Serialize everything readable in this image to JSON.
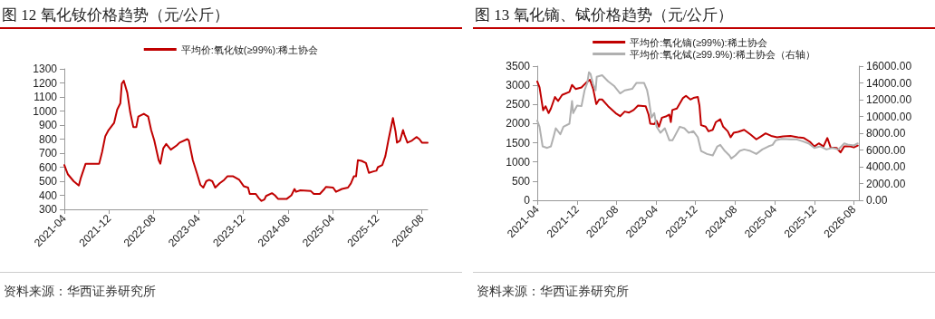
{
  "chart_data": [
    {
      "type": "line",
      "title": "图 12 氧化钕价格趋势（元/公斤）",
      "annotations": [
        "资料来源：华西证券研究所"
      ],
      "legend": "top",
      "grid": false,
      "marker": "none",
      "line_style": "solid",
      "xlim": [
        "2021-04",
        "2026-09"
      ],
      "xticks": [
        "2021-04",
        "2021-12",
        "2022-08",
        "2023-04",
        "2023-12",
        "2024-08",
        "2025-04",
        "2025-12",
        "2026-08"
      ],
      "ylim": [
        300,
        1300
      ],
      "yticks": [
        300,
        400,
        500,
        600,
        700,
        800,
        900,
        1000,
        1100,
        1200,
        1300
      ],
      "series": [
        {
          "name": "平均价:氧化钕(≥99%):稀土协会",
          "color": "#c00000",
          "x": [
            "2021-04-01",
            "2021-04-20",
            "2021-05-22",
            "2021-06-19",
            "2021-06-29",
            "2021-07-26",
            "2021-10-08",
            "2021-10-24",
            "2021-11-10",
            "2021-11-26",
            "2021-12-28",
            "2022-01-14",
            "2022-01-31",
            "2022-02-08",
            "2022-02-19",
            "2022-03-10",
            "2022-03-26",
            "2022-04-12",
            "2022-04-28",
            "2022-05-09",
            "2022-06-08",
            "2022-07-02",
            "2022-07-18",
            "2022-08-04",
            "2022-08-28",
            "2022-09-06",
            "2022-09-22",
            "2022-10-08",
            "2022-11-02",
            "2022-12-04",
            "2022-12-20",
            "2023-01-31",
            "2023-02-08",
            "2023-03-02",
            "2023-03-26",
            "2023-04-12",
            "2023-04-28",
            "2023-05-14",
            "2023-05-30",
            "2023-06-16",
            "2023-07-02",
            "2023-07-26",
            "2023-08-20",
            "2023-09-06",
            "2023-10-08",
            "2023-11-10",
            "2023-12-04",
            "2023-12-28",
            "2024-01-06",
            "2024-02-08",
            "2024-02-24",
            "2024-03-10",
            "2024-03-26",
            "2024-04-04",
            "2024-05-06",
            "2024-05-22",
            "2024-06-08",
            "2024-07-26",
            "2024-08-20",
            "2024-09-06",
            "2024-09-14",
            "2024-10-08",
            "2024-12-04",
            "2024-12-20",
            "2025-01-22",
            "2025-02-16",
            "2025-02-24",
            "2025-04-04",
            "2025-04-20",
            "2025-05-22",
            "2025-06-24",
            "2025-07-10",
            "2025-07-26",
            "2025-08-07",
            "2025-08-17",
            "2025-09-06",
            "2025-09-30",
            "2025-10-16",
            "2025-11-10",
            "2025-11-26",
            "2025-12-04",
            "2025-12-28",
            "2026-01-14",
            "2026-01-30",
            "2026-02-24",
            "2026-03-10",
            "2026-03-18",
            "2026-04-04",
            "2026-04-20",
            "2026-04-28",
            "2026-05-14",
            "2026-06-08",
            "2026-07-02",
            "2026-07-18",
            "2026-08-01",
            "2026-09-01"
          ],
          "values": [
            615,
            550,
            500,
            470,
            520,
            625,
            625,
            710,
            820,
            860,
            915,
            1010,
            1055,
            1195,
            1215,
            1130,
            990,
            885,
            885,
            960,
            980,
            960,
            865,
            790,
            650,
            625,
            735,
            765,
            725,
            755,
            775,
            800,
            790,
            650,
            550,
            475,
            455,
            500,
            510,
            500,
            455,
            485,
            510,
            535,
            535,
            510,
            465,
            455,
            410,
            410,
            380,
            360,
            370,
            395,
            415,
            400,
            375,
            375,
            400,
            445,
            425,
            435,
            430,
            410,
            410,
            445,
            460,
            455,
            425,
            445,
            455,
            485,
            535,
            535,
            650,
            645,
            630,
            560,
            570,
            575,
            600,
            615,
            680,
            790,
            950,
            855,
            775,
            790,
            865,
            830,
            775,
            790,
            815,
            800,
            775,
            775
          ]
        }
      ]
    },
    {
      "type": "line",
      "title": "图 13 氧化镝、铽价格趋势（元/公斤）",
      "annotations": [
        "资料来源：华西证券研究所"
      ],
      "legend": "top",
      "grid": false,
      "marker": "none",
      "line_style": "solid",
      "xlim": [
        "2021-04",
        "2026-09"
      ],
      "xticks": [
        "2021-04",
        "2021-12",
        "2022-08",
        "2023-04",
        "2023-12",
        "2024-08",
        "2025-04",
        "2025-12",
        "2026-08"
      ],
      "ylim": [
        0,
        3500
      ],
      "yticks": [
        0,
        500,
        1000,
        1500,
        2000,
        2500,
        3000,
        3500
      ],
      "y2lim": [
        0,
        16000
      ],
      "y2ticks": [
        {
          "value": 0,
          "label": "0.00"
        },
        {
          "value": 2000,
          "label": "2000.00"
        },
        {
          "value": 4000,
          "label": "4000.00"
        },
        {
          "value": 6000,
          "label": "6000.00"
        },
        {
          "value": 8000,
          "label": "8000.00"
        },
        {
          "value": 10000,
          "label": "10000.00"
        },
        {
          "value": 12000,
          "label": "12000.00"
        },
        {
          "value": 14000,
          "label": "14000.00"
        },
        {
          "value": 16000,
          "label": "16000.00"
        }
      ],
      "series": [
        {
          "name": "平均价:氧化镝(≥99%):稀土协会",
          "color": "#c00000",
          "x": [
            "2021-04-01",
            "2021-04-15",
            "2021-05-07",
            "2021-05-22",
            "2021-06-10",
            "2021-06-24",
            "2021-07-19",
            "2021-08-07",
            "2021-09-01",
            "2021-10-16",
            "2021-11-01",
            "2021-11-23",
            "2021-12-29",
            "2022-01-26",
            "2022-02-19",
            "2022-03-11",
            "2022-03-30",
            "2022-04-17",
            "2022-05-05",
            "2022-06-11",
            "2022-07-27",
            "2022-08-24",
            "2022-09-21",
            "2022-10-18",
            "2022-11-15",
            "2022-12-12",
            "2023-01-28",
            "2023-02-15",
            "2023-02-25",
            "2023-03-22",
            "2023-04-05",
            "2023-04-20",
            "2023-05-08",
            "2023-06-05",
            "2023-06-23",
            "2023-07-02",
            "2023-07-11",
            "2023-08-08",
            "2023-09-15",
            "2023-10-03",
            "2023-10-30",
            "2023-11-18",
            "2023-12-15",
            "2023-12-25",
            "2024-01-04",
            "2024-02-01",
            "2024-02-19",
            "2024-03-16",
            "2024-04-04",
            "2024-05-01",
            "2024-05-19",
            "2024-06-16",
            "2024-07-04",
            "2024-07-22",
            "2024-08-19",
            "2024-09-25",
            "2024-11-02",
            "2024-12-09",
            "2025-01-06",
            "2025-02-04",
            "2025-03-10",
            "2025-04-16",
            "2025-05-22",
            "2025-07-07",
            "2025-08-22",
            "2025-09-28",
            "2025-11-04",
            "2025-12-01",
            "2025-12-28",
            "2026-01-26",
            "2026-02-19",
            "2026-03-11",
            "2026-04-17",
            "2026-05-11",
            "2026-06-03",
            "2026-07-10",
            "2026-08-01",
            "2026-08-25"
          ],
          "values": [
            3100,
            2945,
            2350,
            2455,
            2275,
            2395,
            2695,
            2590,
            2750,
            2830,
            3010,
            2905,
            2945,
            3065,
            3145,
            2905,
            2510,
            2630,
            2630,
            2455,
            2275,
            2195,
            2315,
            2290,
            2355,
            2470,
            2455,
            2235,
            2000,
            1985,
            2075,
            1920,
            2155,
            2195,
            2235,
            2040,
            2355,
            2395,
            2670,
            2725,
            2630,
            2670,
            2695,
            2470,
            1960,
            1920,
            1800,
            1840,
            2040,
            2115,
            1920,
            1800,
            1645,
            1760,
            1785,
            1840,
            1720,
            1590,
            1665,
            1745,
            1680,
            1645,
            1665,
            1680,
            1645,
            1625,
            1525,
            1405,
            1485,
            1405,
            1625,
            1380,
            1365,
            1250,
            1405,
            1405,
            1380,
            1430
          ]
        },
        {
          "name": "平均价:氧化铽(≥99.9%):稀土协会（右轴）",
          "color": "#b0b0b0",
          "axis": "y2",
          "x": [
            "2021-04-01",
            "2021-04-15",
            "2021-05-04",
            "2021-06-01",
            "2021-06-24",
            "2021-07-12",
            "2021-07-24",
            "2021-08-21",
            "2021-09-09",
            "2021-10-16",
            "2021-11-01",
            "2021-11-08",
            "2021-12-02",
            "2021-12-29",
            "2022-01-17",
            "2022-02-03",
            "2022-02-13",
            "2022-02-22",
            "2022-03-11",
            "2022-03-26",
            "2022-04-02",
            "2022-05-05",
            "2022-06-11",
            "2022-07-17",
            "2022-08-24",
            "2022-09-21",
            "2022-11-06",
            "2022-12-03",
            "2023-01-18",
            "2023-02-06",
            "2023-02-15",
            "2023-03-05",
            "2023-03-22",
            "2023-04-05",
            "2023-04-29",
            "2023-05-26",
            "2023-06-23",
            "2023-07-12",
            "2023-08-26",
            "2023-09-23",
            "2023-10-20",
            "2023-11-18",
            "2023-12-15",
            "2024-01-04",
            "2024-02-09",
            "2024-03-16",
            "2024-04-13",
            "2024-05-01",
            "2024-05-29",
            "2024-06-26",
            "2024-07-08",
            "2024-08-02",
            "2024-08-29",
            "2024-09-25",
            "2024-11-02",
            "2024-12-09",
            "2025-01-15",
            "2025-02-21",
            "2025-03-19",
            "2025-04-07",
            "2025-05-13",
            "2025-07-07",
            "2025-08-14",
            "2025-09-20",
            "2025-10-26",
            "2025-12-01",
            "2026-01-07",
            "2026-02-13",
            "2026-03-22",
            "2026-04-28",
            "2026-06-03",
            "2026-07-01",
            "2026-08-01",
            "2026-08-25"
          ],
          "values": [
            9500,
            8775,
            6430,
            6250,
            6430,
            7690,
            8595,
            7875,
            8775,
            9135,
            11845,
            10400,
            11305,
            11230,
            13110,
            14010,
            15275,
            15095,
            13830,
            13110,
            14735,
            14915,
            14190,
            13650,
            12750,
            13110,
            13290,
            14010,
            14010,
            13110,
            12205,
            9860,
            10400,
            8775,
            8055,
            8595,
            7150,
            7150,
            8775,
            8595,
            8055,
            8235,
            7510,
            5885,
            5525,
            5345,
            6430,
            6610,
            5885,
            5345,
            4985,
            5345,
            5885,
            6065,
            5885,
            5525,
            6065,
            6430,
            6610,
            7150,
            7330,
            7260,
            7260,
            7040,
            6790,
            6250,
            6430,
            6065,
            6250,
            6065,
            6790,
            6610,
            6540,
            6790
          ]
        }
      ]
    }
  ]
}
